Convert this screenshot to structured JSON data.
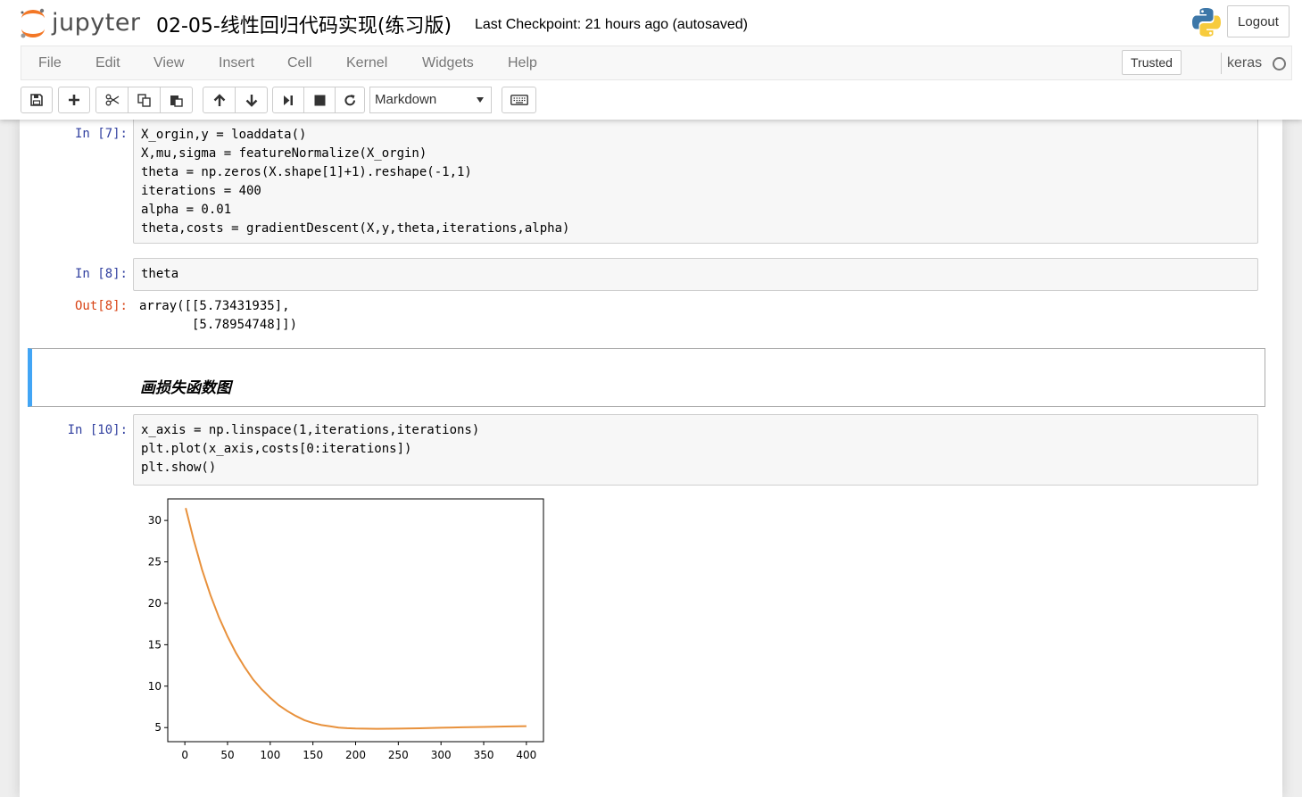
{
  "header": {
    "logo_text": "jupyter",
    "notebook_title": "02-05-线性回归代码实现(练习版)",
    "checkpoint": "Last Checkpoint: 21 hours ago (autosaved)",
    "logout_label": "Logout"
  },
  "menu": {
    "items": [
      "File",
      "Edit",
      "View",
      "Insert",
      "Cell",
      "Kernel",
      "Widgets",
      "Help"
    ],
    "trusted_label": "Trusted",
    "kernel_name": "keras"
  },
  "toolbar": {
    "buttons": [
      "save-icon",
      "plus-icon",
      "cut-icon",
      "copy-icon",
      "paste-icon",
      "arrow-up-icon",
      "arrow-down-icon",
      "run-icon",
      "stop-icon",
      "restart-icon",
      "keyboard-icon"
    ],
    "cell_type": "Markdown"
  },
  "cells": {
    "c7": {
      "prompt": "In  [7]:",
      "lines": [
        "X_orgin,y = loaddata()",
        "X,mu,sigma = featureNormalize(X_orgin)",
        "theta = np.zeros(X.shape[1]+1).reshape(-1,1)",
        "iterations = 400",
        "alpha = 0.01",
        "theta,costs = gradientDescent(X,y,theta,iterations,alpha)"
      ]
    },
    "c8": {
      "prompt": "In  [8]:",
      "code": "theta",
      "out_prompt": "Out[8]:",
      "output": "array([[5.73431935],\n       [5.78954748]])"
    },
    "md": {
      "text": "画损失函数图"
    },
    "c10": {
      "prompt": "In  [10]:",
      "lines": [
        "x_axis = np.linspace(1,iterations,iterations)",
        "plt.plot(x_axis,costs[0:iterations])",
        "plt.show()"
      ]
    }
  },
  "chart_data": {
    "type": "line",
    "title": "",
    "xlabel": "",
    "ylabel": "",
    "xlim": [
      -20,
      420
    ],
    "ylim": [
      3.3,
      32.6
    ],
    "xticks": [
      0,
      50,
      100,
      150,
      200,
      250,
      300,
      350,
      400
    ],
    "yticks": [
      5,
      10,
      15,
      20,
      25,
      30
    ],
    "grid": false,
    "color": "#e8913c",
    "x": [
      1,
      10,
      20,
      30,
      40,
      50,
      60,
      70,
      80,
      90,
      100,
      110,
      120,
      130,
      140,
      150,
      160,
      170,
      180,
      190,
      200,
      225,
      250,
      275,
      300,
      325,
      350,
      375,
      400
    ],
    "series": [
      {
        "values": [
          31.5,
          27.8,
          24.1,
          21.0,
          18.3,
          16.0,
          14.0,
          12.3,
          10.8,
          9.6,
          8.6,
          7.7,
          7.0,
          6.4,
          5.9,
          5.55,
          5.3,
          5.15,
          5.0,
          4.93,
          4.88,
          4.85,
          4.87,
          4.92,
          4.98,
          5.03,
          5.08,
          5.13,
          5.17
        ]
      }
    ]
  }
}
